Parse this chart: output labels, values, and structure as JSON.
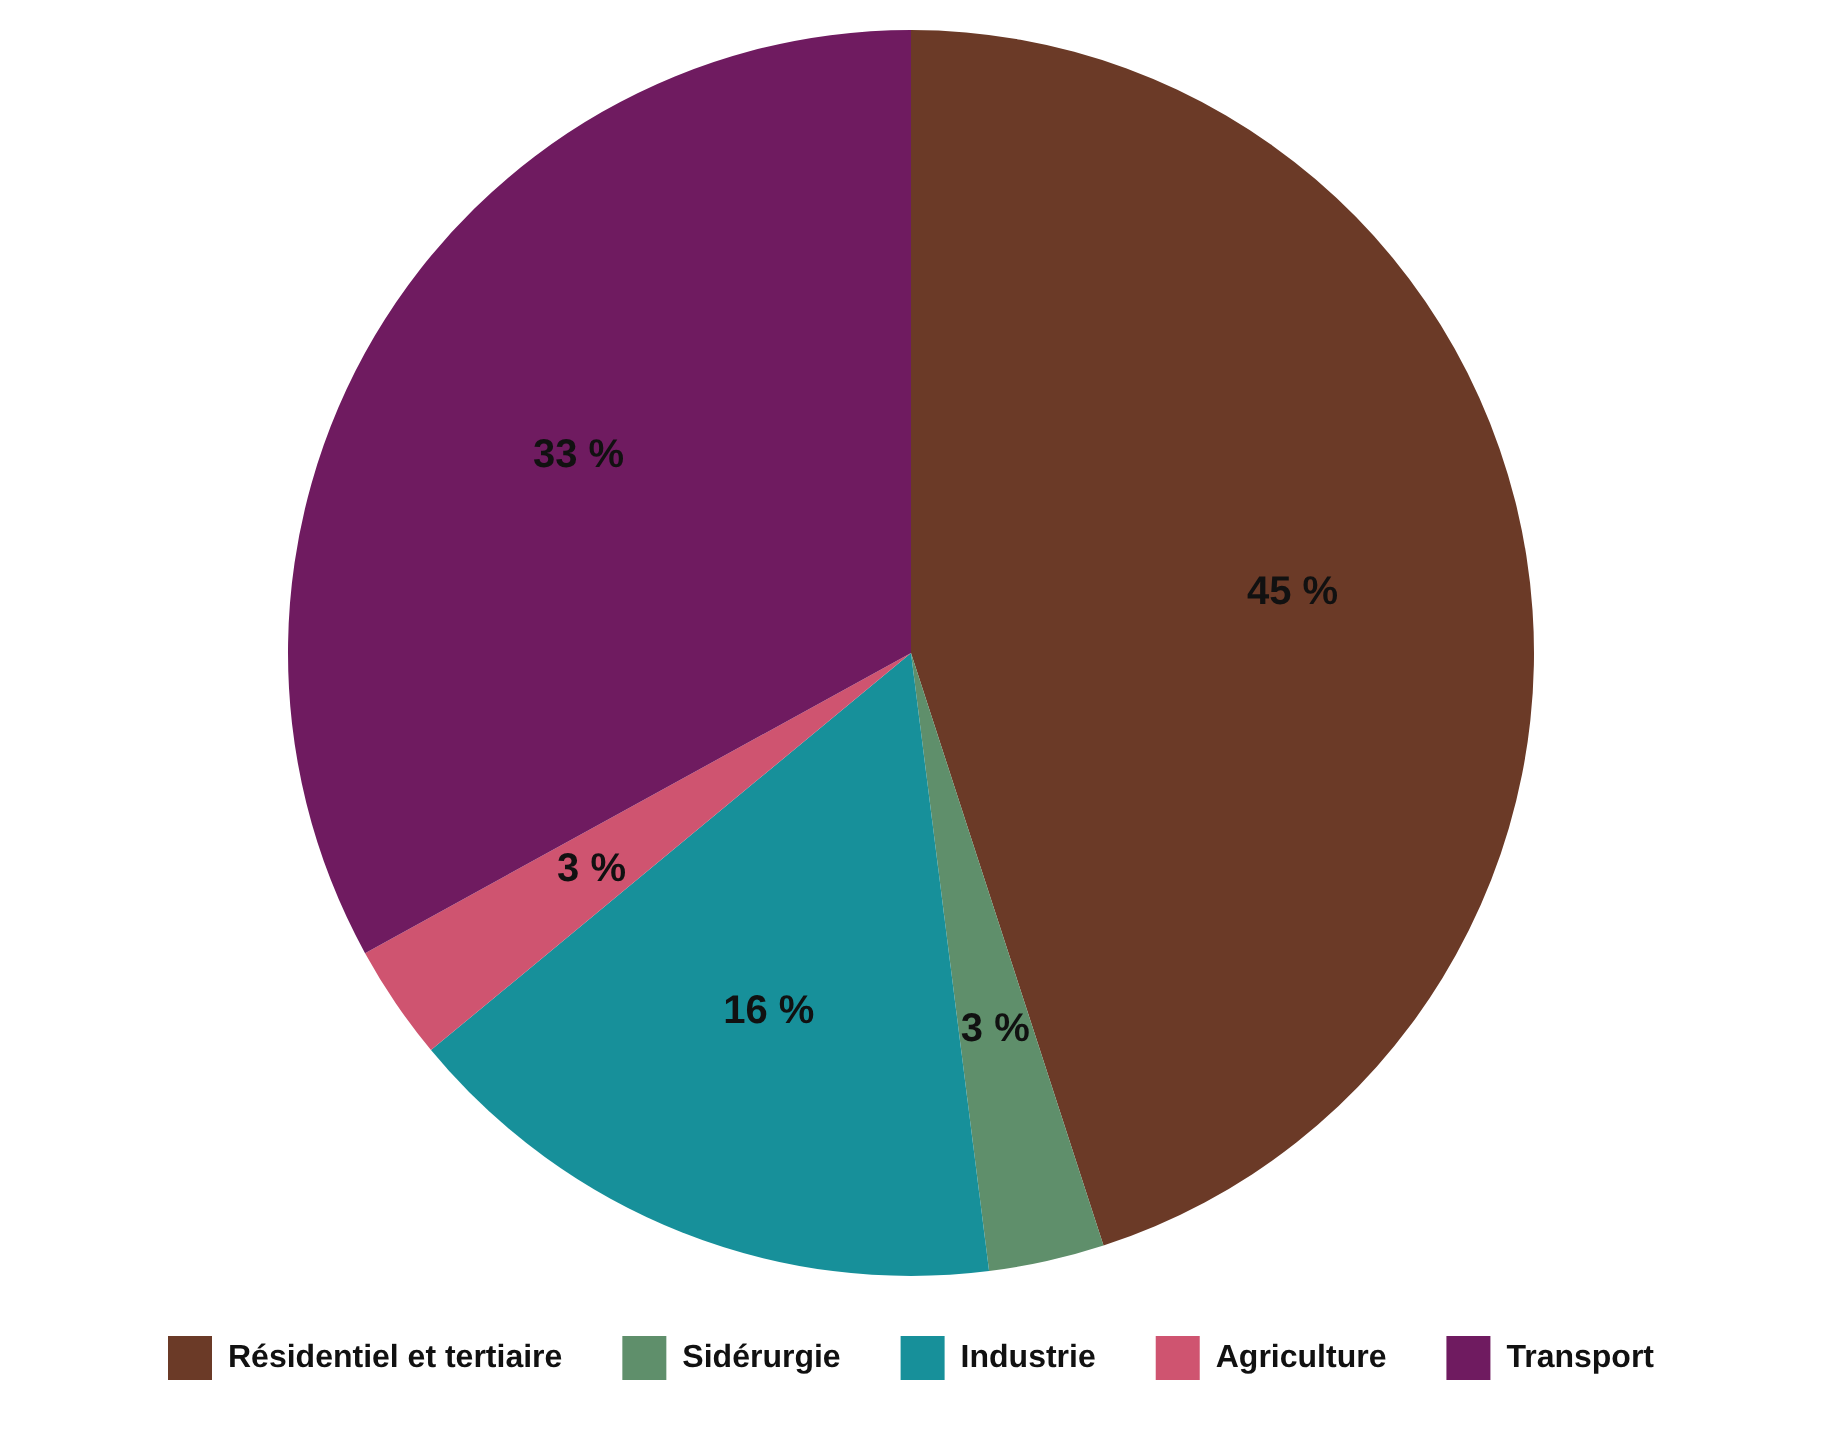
{
  "chart_data": {
    "type": "pie",
    "categories": [
      "Résidentiel et tertiaire",
      "Sidérurgie",
      "Industrie",
      "Agriculture",
      "Transport"
    ],
    "values": [
      45,
      3,
      16,
      3,
      33
    ],
    "colors": [
      "#6b3a27",
      "#5f8f6b",
      "#17909a",
      "#cf5470",
      "#6f1b60"
    ],
    "value_labels": [
      "45 %",
      "3 %",
      "16 %",
      "3 %",
      "33 %"
    ],
    "legend": "bottom"
  }
}
